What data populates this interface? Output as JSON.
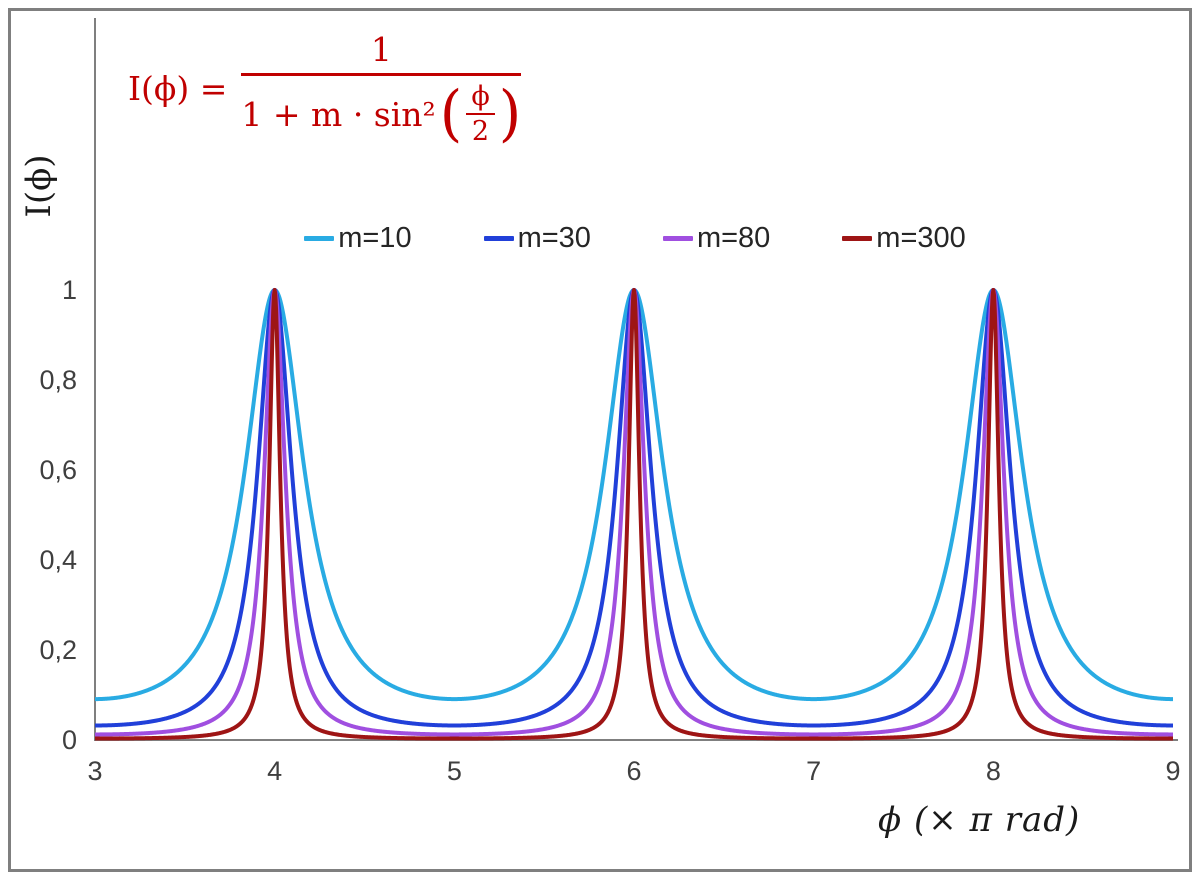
{
  "formula": {
    "text": "I(ϕ) = 1 / (1 + m·sin²(ϕ/2))",
    "lhs": "I(ϕ) =",
    "numerator": "1",
    "den_prefix": "1 + m · sin²",
    "open_paren": "(",
    "inner_num": "ϕ",
    "inner_den": "2",
    "close_paren": ")",
    "color": "#c00000"
  },
  "chart_data": {
    "type": "line",
    "title": "",
    "annotation": "I(ϕ) = 1 / (1 + m·sin²(ϕ/2))",
    "function": "I(x) = 1 / (1 + m·sin²(x·π/2)), x in units of π rad",
    "xlabel": "ϕ  (× π rad)",
    "ylabel": "I(ϕ)",
    "x_unit": "π rad",
    "xlim": [
      3,
      9
    ],
    "ylim": [
      0,
      1
    ],
    "grid": false,
    "legend_position": "top-center",
    "axis_color": "#7f7f7f",
    "tick_color": "#3f3f3f",
    "x_ticks": [
      {
        "value": 3,
        "label": "3"
      },
      {
        "value": 4,
        "label": "4"
      },
      {
        "value": 5,
        "label": "5"
      },
      {
        "value": 6,
        "label": "6"
      },
      {
        "value": 7,
        "label": "7"
      },
      {
        "value": 8,
        "label": "8"
      },
      {
        "value": 9,
        "label": "9"
      }
    ],
    "y_ticks": [
      {
        "value": 0,
        "label": "0"
      },
      {
        "value": 0.2,
        "label": "0,2"
      },
      {
        "value": 0.4,
        "label": "0,4"
      },
      {
        "value": 0.6,
        "label": "0,6"
      },
      {
        "value": 0.8,
        "label": "0,8"
      },
      {
        "value": 1,
        "label": "1"
      }
    ],
    "peaks_at_x": [
      4,
      6,
      8
    ],
    "peak_value": 1,
    "series": [
      {
        "name": "m=10",
        "m": 10,
        "color": "#29abe3"
      },
      {
        "name": "m=30",
        "m": 30,
        "color": "#2140d9"
      },
      {
        "name": "m=80",
        "m": 80,
        "color": "#a04fe0"
      },
      {
        "name": "m=300",
        "m": 300,
        "color": "#9e1515"
      }
    ]
  }
}
